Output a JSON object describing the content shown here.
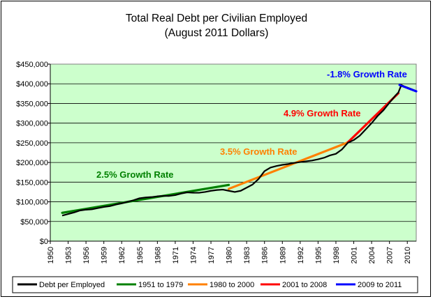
{
  "chart_data": {
    "type": "line",
    "title": "Total Real Debt per Civilian Employed",
    "subtitle": "(August 2011 Dollars)",
    "xlabel": "",
    "ylabel": "",
    "xlim": [
      1950,
      2011.5
    ],
    "ylim": [
      0,
      450000
    ],
    "y_ticks": [
      0,
      50000,
      100000,
      150000,
      200000,
      250000,
      300000,
      350000,
      400000,
      450000
    ],
    "y_tick_labels": [
      "$0",
      "$50,000",
      "$100,000",
      "$150,000",
      "$200,000",
      "$250,000",
      "$300,000",
      "$350,000",
      "$400,000",
      "$450,000"
    ],
    "x_ticks": [
      1950,
      1953,
      1956,
      1959,
      1962,
      1965,
      1968,
      1971,
      1974,
      1977,
      1980,
      1983,
      1986,
      1989,
      1992,
      1995,
      1998,
      2001,
      2004,
      2007,
      2010
    ],
    "x_tick_labels": [
      "1950",
      "1953",
      "1956",
      "1959",
      "1962",
      "1965",
      "1968",
      "1971",
      "1974",
      "1977",
      "1980",
      "1983",
      "1986",
      "1989",
      "1992",
      "1995",
      "1998",
      "2001",
      "2004",
      "2007",
      "2010"
    ],
    "grid": "horizontal",
    "plot_background": "#ccffcc",
    "legend_position": "bottom",
    "series": [
      {
        "name": "Debt per Employed",
        "color": "#000000",
        "x": [
          1952,
          1953,
          1954,
          1955,
          1956,
          1957,
          1958,
          1959,
          1960,
          1961,
          1962,
          1963,
          1964,
          1965,
          1966,
          1967,
          1968,
          1969,
          1970,
          1971,
          1972,
          1973,
          1974,
          1975,
          1976,
          1977,
          1978,
          1979,
          1980,
          1981,
          1982,
          1983,
          1984,
          1985,
          1986,
          1987,
          1988,
          1989,
          1990,
          1991,
          1992,
          1993,
          1994,
          1995,
          1996,
          1997,
          1998,
          1999,
          2000,
          2001,
          2002,
          2003,
          2004,
          2005,
          2006,
          2007,
          2008,
          2008.5,
          2009,
          2009.5,
          2010,
          2010.5,
          2011,
          2011.5
        ],
        "y": [
          65000,
          69000,
          73000,
          78000,
          80000,
          81000,
          84000,
          87000,
          89000,
          93000,
          96000,
          100000,
          104000,
          109000,
          111000,
          112000,
          114000,
          115000,
          115000,
          117000,
          121000,
          124000,
          123000,
          123000,
          125000,
          128000,
          130000,
          131000,
          128000,
          125000,
          128000,
          136000,
          144000,
          158000,
          178000,
          187000,
          191000,
          194000,
          196000,
          199000,
          201000,
          203000,
          205000,
          208000,
          212000,
          218000,
          222000,
          233000,
          250000,
          257000,
          268000,
          284000,
          300000,
          318000,
          333000,
          352000,
          370000,
          378000,
          397000,
          393000,
          390000,
          387000,
          384000,
          381000
        ]
      },
      {
        "name": "1951 to 1979",
        "color": "#008000",
        "x": [
          1952,
          1980
        ],
        "y": [
          72000,
          143000
        ]
      },
      {
        "name": "1980 to 2000",
        "color": "#ff8000",
        "x": [
          1980,
          2000
        ],
        "y": [
          133000,
          251000
        ]
      },
      {
        "name": "2001 to 2008",
        "color": "#ff0000",
        "x": [
          2000,
          2008.5
        ],
        "y": [
          251000,
          376000
        ]
      },
      {
        "name": "2009 to 2011",
        "color": "#0000ff",
        "x": [
          2008.7,
          2011.5
        ],
        "y": [
          397000,
          381000
        ]
      }
    ],
    "annotations": [
      {
        "text": "2.5% Growth Rate",
        "color": "#008000"
      },
      {
        "text": "3.5% Growth Rate",
        "color": "#ff8000"
      },
      {
        "text": "4.9% Growth Rate",
        "color": "#ff0000"
      },
      {
        "text": "-1.8% Growth Rate",
        "color": "#0000ff"
      }
    ]
  }
}
